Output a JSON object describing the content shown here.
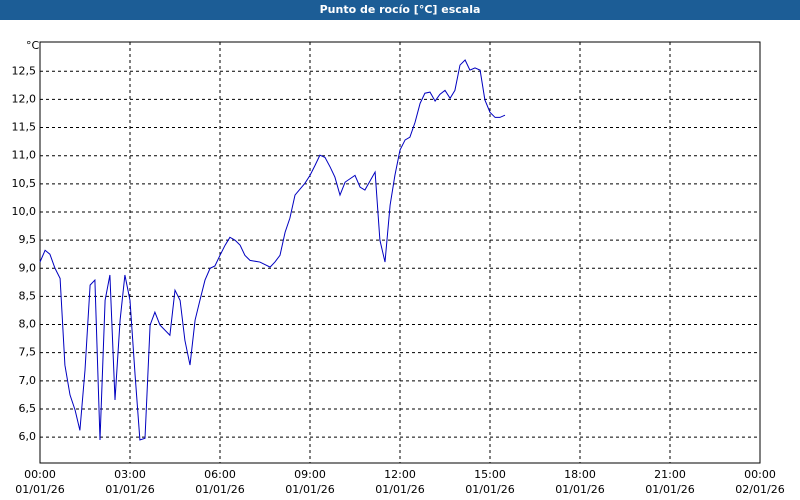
{
  "chart_data": {
    "type": "line",
    "title": "Punto de rocío [°C] escala",
    "y_unit": "°C",
    "xlim": [
      0,
      24
    ],
    "ylim": [
      5.54,
      13.02
    ],
    "xticks": [
      {
        "value": 0,
        "label": "00:00"
      },
      {
        "value": 3,
        "label": "03:00"
      },
      {
        "value": 6,
        "label": "06:00"
      },
      {
        "value": 9,
        "label": "09:00"
      },
      {
        "value": 12,
        "label": "12:00"
      },
      {
        "value": 15,
        "label": "15:00"
      },
      {
        "value": 18,
        "label": "18:00"
      },
      {
        "value": 21,
        "label": "21:00"
      },
      {
        "value": 24,
        "label": "00:00"
      }
    ],
    "xtick_dates": [
      "01/01/26",
      "01/01/26",
      "01/01/26",
      "01/01/26",
      "01/01/26",
      "01/01/26",
      "01/01/26",
      "01/01/26",
      "02/01/26"
    ],
    "yticks": [
      {
        "value": 6,
        "label": "6,0"
      },
      {
        "value": 6.5,
        "label": "6,5"
      },
      {
        "value": 7,
        "label": "7,0"
      },
      {
        "value": 7.5,
        "label": "7,5"
      },
      {
        "value": 8,
        "label": "8,0"
      },
      {
        "value": 8.5,
        "label": "8,5"
      },
      {
        "value": 9,
        "label": "9,0"
      },
      {
        "value": 9.5,
        "label": "9,5"
      },
      {
        "value": 10,
        "label": "10,0"
      },
      {
        "value": 10.5,
        "label": "10,5"
      },
      {
        "value": 11,
        "label": "11,0"
      },
      {
        "value": 11.5,
        "label": "11,5"
      },
      {
        "value": 12,
        "label": "12,0"
      },
      {
        "value": 12.5,
        "label": "12,5"
      }
    ],
    "grid": true,
    "series": [
      {
        "color": "#0000c0",
        "x": [
          0,
          0.17,
          0.33,
          0.5,
          0.67,
          0.83,
          1.0,
          1.17,
          1.33,
          1.5,
          1.67,
          1.83,
          2.0,
          2.17,
          2.33,
          2.5,
          2.67,
          2.83,
          3.0,
          3.17,
          3.33,
          3.5,
          3.67,
          3.83,
          4.0,
          4.33,
          4.5,
          4.67,
          4.83,
          5.0,
          5.17,
          5.33,
          5.5,
          5.67,
          5.83,
          6.0,
          6.17,
          6.33,
          6.5,
          6.67,
          6.83,
          7.0,
          7.33,
          7.67,
          7.83,
          8.0,
          8.17,
          8.33,
          8.5,
          8.83,
          9.0,
          9.17,
          9.33,
          9.5,
          9.67,
          9.83,
          10.0,
          10.17,
          10.5,
          10.67,
          10.83,
          11.17,
          11.33,
          11.5,
          11.67,
          11.83,
          12.0,
          12.17,
          12.33,
          12.5,
          12.67,
          12.83,
          13.0,
          13.17,
          13.33,
          13.5,
          13.67,
          13.83,
          14.0,
          14.17,
          14.33,
          14.5,
          14.67,
          14.83,
          15.0,
          15.17,
          15.33,
          15.5
        ],
        "values": [
          9.11,
          9.32,
          9.25,
          9.0,
          8.82,
          7.28,
          6.75,
          6.48,
          6.12,
          7.19,
          8.7,
          8.79,
          5.95,
          8.43,
          8.88,
          6.66,
          8.08,
          8.88,
          8.43,
          7.1,
          5.95,
          5.98,
          7.99,
          8.22,
          7.99,
          7.81,
          8.61,
          8.43,
          7.72,
          7.28,
          8.08,
          8.43,
          8.79,
          9.0,
          9.04,
          9.23,
          9.41,
          9.55,
          9.5,
          9.41,
          9.23,
          9.14,
          9.11,
          9.02,
          9.11,
          9.23,
          9.64,
          9.89,
          10.3,
          10.51,
          10.65,
          10.83,
          11.01,
          10.97,
          10.8,
          10.62,
          10.3,
          10.53,
          10.65,
          10.44,
          10.39,
          10.71,
          9.5,
          9.11,
          10.12,
          10.65,
          11.1,
          11.28,
          11.33,
          11.59,
          11.93,
          12.11,
          12.13,
          11.97,
          12.09,
          12.16,
          12.02,
          12.16,
          12.61,
          12.7,
          12.52,
          12.56,
          12.52,
          11.99,
          11.77,
          11.68,
          11.68,
          11.72
        ]
      }
    ]
  }
}
